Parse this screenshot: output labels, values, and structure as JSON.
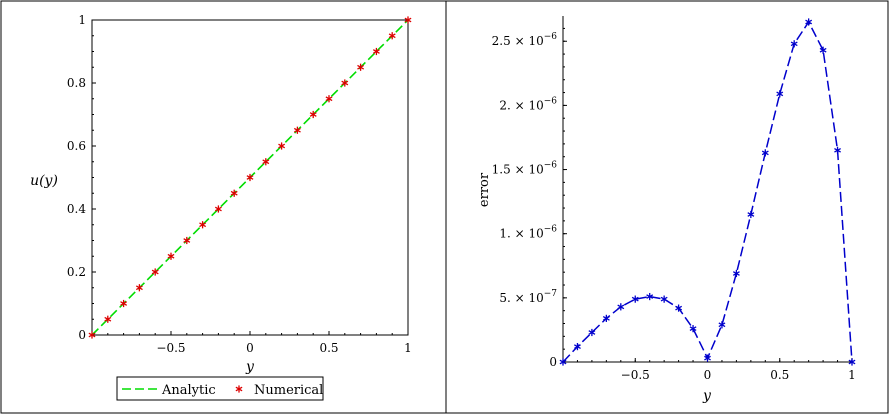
{
  "chart_data": [
    {
      "type": "line",
      "xlabel": "y",
      "ylabel": "u(y)",
      "xlim": [
        -1,
        1
      ],
      "ylim": [
        0,
        1
      ],
      "xticks": [
        -0.5,
        0,
        0.5,
        1
      ],
      "xtick_labels": [
        "−0.5",
        "0",
        "0.5",
        "1"
      ],
      "yticks": [
        0,
        0.2,
        0.4,
        0.6,
        0.8,
        1
      ],
      "ytick_labels": [
        "0",
        "0.2",
        "0.4",
        "0.6",
        "0.8",
        "1"
      ],
      "legend_position": "bottom",
      "series": [
        {
          "name": "Analytic",
          "style": "dashed-line",
          "color": "#00dd00",
          "x": [
            -1,
            1
          ],
          "y": [
            0,
            1
          ]
        },
        {
          "name": "Numerical",
          "style": "star-markers",
          "color": "#dd0000",
          "x": [
            -1,
            -0.9,
            -0.8,
            -0.7,
            -0.6,
            -0.5,
            -0.4,
            -0.3,
            -0.2,
            -0.1,
            0,
            0.1,
            0.2,
            0.3,
            0.4,
            0.5,
            0.6,
            0.7,
            0.8,
            0.9,
            1
          ],
          "y": [
            0,
            0.05,
            0.1,
            0.15,
            0.2,
            0.25,
            0.3,
            0.35,
            0.4,
            0.45,
            0.5,
            0.55,
            0.6,
            0.65,
            0.7,
            0.75,
            0.8,
            0.85,
            0.9,
            0.95,
            1
          ]
        }
      ]
    },
    {
      "type": "line",
      "xlabel": "y",
      "ylabel": "error",
      "xlim": [
        -1,
        1
      ],
      "ylim": [
        0,
        2.65e-06
      ],
      "xticks": [
        -0.5,
        0,
        0.5,
        1
      ],
      "xtick_labels": [
        "−0.5",
        "0",
        "0.5",
        "1"
      ],
      "yticks": [
        0,
        5e-07,
        1e-06,
        1.5e-06,
        2e-06,
        2.5e-06
      ],
      "ytick_labels": [
        {
          "mantissa": "0",
          "exponent": ""
        },
        {
          "mantissa": "5. × 10",
          "exponent": "−7"
        },
        {
          "mantissa": "1. × 10",
          "exponent": "−6"
        },
        {
          "mantissa": "1.5 × 10",
          "exponent": "−6"
        },
        {
          "mantissa": "2. × 10",
          "exponent": "−6"
        },
        {
          "mantissa": "2.5 × 10",
          "exponent": "−6"
        }
      ],
      "series": [
        {
          "style": "dashed-line-star-markers",
          "color": "#0000cc",
          "x": [
            -1,
            -0.9,
            -0.8,
            -0.7,
            -0.6,
            -0.5,
            -0.4,
            -0.3,
            -0.2,
            -0.1,
            0,
            0.1,
            0.2,
            0.3,
            0.4,
            0.5,
            0.6,
            0.7,
            0.8,
            0.9,
            1
          ],
          "y": [
            0,
            1.2e-07,
            2.3e-07,
            3.4e-07,
            4.3e-07,
            4.9e-07,
            5.1e-07,
            4.9e-07,
            4.2e-07,
            2.6e-07,
            3e-08,
            2.9e-07,
            6.9e-07,
            1.15e-06,
            1.63e-06,
            2.09e-06,
            2.48e-06,
            2.65e-06,
            2.43e-06,
            1.65e-06,
            0
          ]
        }
      ]
    }
  ]
}
